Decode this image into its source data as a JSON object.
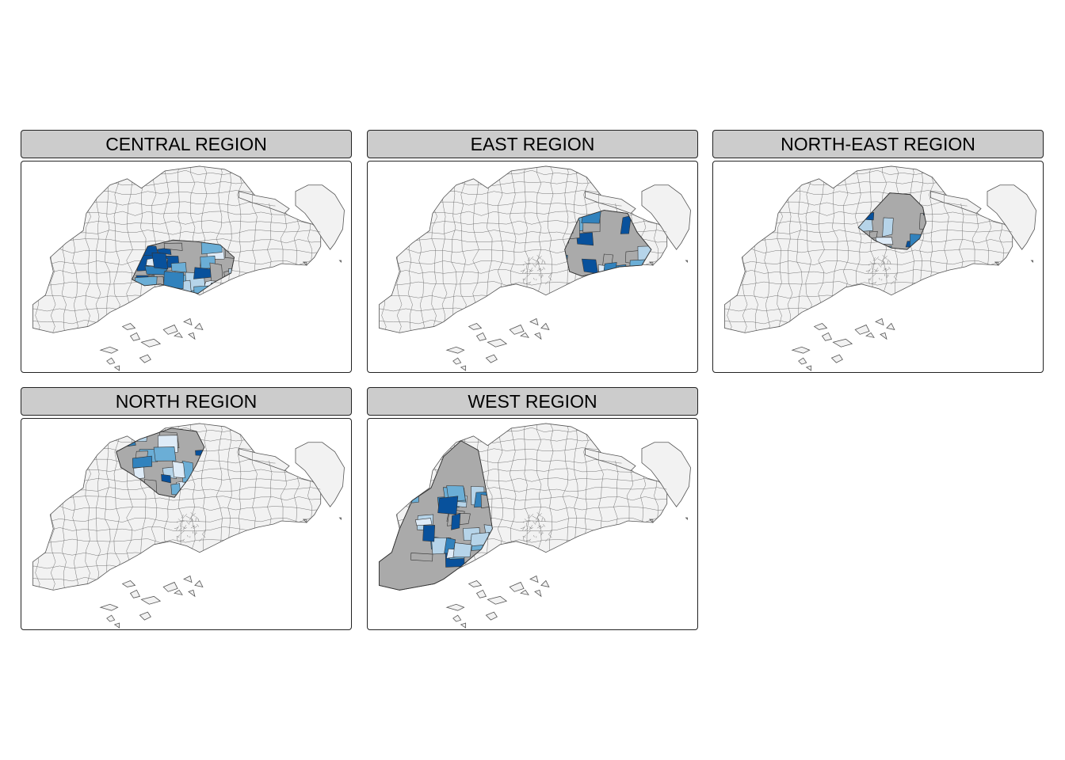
{
  "figure": {
    "panels": [
      {
        "id": "central",
        "title": "CENTRAL REGION"
      },
      {
        "id": "east",
        "title": "EAST REGION"
      },
      {
        "id": "northeast",
        "title": "NORTH-EAST REGION"
      },
      {
        "id": "north",
        "title": "NORTH REGION"
      },
      {
        "id": "west",
        "title": "WEST REGION"
      }
    ]
  },
  "colors": {
    "background_subzone": "#f2f2f2",
    "missing": "#aaaaaa",
    "outline": "#555555",
    "panel_border": "#222222",
    "strip_fill": "#cccccc",
    "blues": [
      "#deebf7",
      "#b6d4e9",
      "#6baed6",
      "#3182bd",
      "#08519c"
    ]
  }
}
